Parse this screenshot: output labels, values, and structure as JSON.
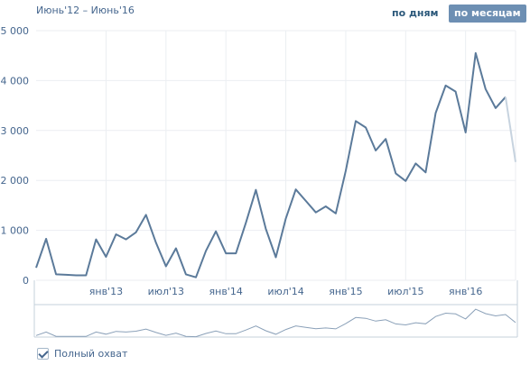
{
  "header": {
    "period": "Июнь'12 – Июнь'16",
    "toggle_days": "по дням",
    "toggle_months": "по месяцам"
  },
  "footer": {
    "full_reach_label": "Полный охват",
    "full_reach_checked": true
  },
  "colors": {
    "line": "#5b7a9a",
    "line_faded": "#c7d3df",
    "grid": "#ebeef2",
    "nav_line": "#8aa0b8"
  },
  "chart_data": {
    "type": "line",
    "title": "",
    "xlabel": "",
    "ylabel": "",
    "ylim": [
      0,
      5000
    ],
    "yticks": [
      0,
      1000,
      2000,
      3000,
      4000,
      5000
    ],
    "ytick_labels": [
      "0",
      "1 000",
      "2 000",
      "3 000",
      "4 000",
      "5 000"
    ],
    "xtick_labels": [
      {
        "label": "янв'13",
        "index": 7
      },
      {
        "label": "июл'13",
        "index": 13
      },
      {
        "label": "янв'14",
        "index": 19
      },
      {
        "label": "июл'14",
        "index": 25
      },
      {
        "label": "янв'15",
        "index": 31
      },
      {
        "label": "июл'15",
        "index": 37
      },
      {
        "label": "янв'16",
        "index": 43
      }
    ],
    "x": [
      "2012-06",
      "2012-07",
      "2012-08",
      "2012-09",
      "2012-10",
      "2012-11",
      "2012-12",
      "2013-01",
      "2013-02",
      "2013-03",
      "2013-04",
      "2013-05",
      "2013-06",
      "2013-07",
      "2013-08",
      "2013-09",
      "2013-10",
      "2013-11",
      "2013-12",
      "2014-01",
      "2014-02",
      "2014-03",
      "2014-04",
      "2014-05",
      "2014-06",
      "2014-07",
      "2014-08",
      "2014-09",
      "2014-10",
      "2014-11",
      "2014-12",
      "2015-01",
      "2015-02",
      "2015-03",
      "2015-04",
      "2015-05",
      "2015-06",
      "2015-07",
      "2015-08",
      "2015-09",
      "2015-10",
      "2015-11",
      "2015-12",
      "2016-01",
      "2016-02",
      "2016-03",
      "2016-04",
      "2016-05",
      "2016-06"
    ],
    "series": [
      {
        "values": [
          250,
          830,
          120,
          110,
          100,
          100,
          820,
          470,
          920,
          820,
          960,
          1310,
          750,
          280,
          640,
          120,
          60,
          590,
          980,
          540,
          540,
          1150,
          1810,
          1030,
          460,
          1240,
          1820,
          1590,
          1360,
          1480,
          1340,
          2190,
          3190,
          3060,
          2600,
          2830,
          2140,
          1990,
          2340,
          2160,
          3350,
          3900,
          3780,
          2960,
          4550,
          3830,
          3450,
          3670,
          2370
        ],
        "partial_last_point": true
      }
    ],
    "grid": true,
    "legend": "none"
  }
}
